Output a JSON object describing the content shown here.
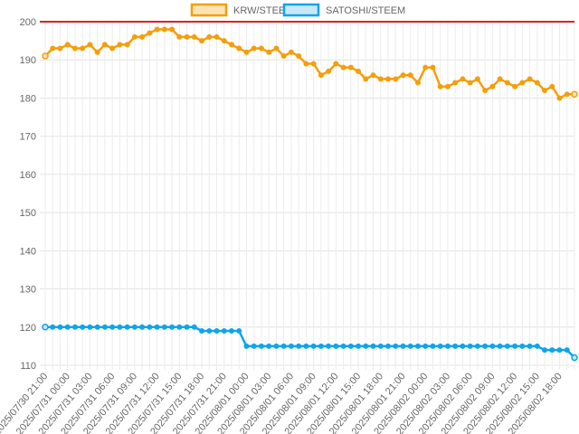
{
  "chart_data": {
    "type": "line",
    "ylim": [
      110,
      200
    ],
    "y_ticks": [
      110,
      120,
      130,
      140,
      150,
      160,
      170,
      180,
      190,
      200
    ],
    "grid": true,
    "legend_position": "top-center",
    "x_tick_labels": [
      "2025/07/30 21:00",
      "2025/07/31 00:00",
      "2025/07/31 03:00",
      "2025/07/31 06:00",
      "2025/07/31 09:00",
      "2025/07/31 12:00",
      "2025/07/31 15:00",
      "2025/07/31 18:00",
      "2025/07/31 21:00",
      "2025/08/01 00:00",
      "2025/08/01 03:00",
      "2025/08/01 06:00",
      "2025/08/01 09:00",
      "2025/08/01 12:00",
      "2025/08/01 15:00",
      "2025/08/01 18:00",
      "2025/08/01 21:00",
      "2025/08/02 00:00",
      "2025/08/02 03:00",
      "2025/08/02 06:00",
      "2025/08/02 09:00",
      "2025/08/02 12:00",
      "2025/08/02 15:00",
      "2025/08/02 18:00"
    ],
    "series": [
      {
        "name": "KRW/STEEM",
        "color": "#f59e0b",
        "fill": "#fde3b3",
        "values": [
          191,
          193,
          193,
          194,
          193,
          193,
          194,
          192,
          194,
          193,
          194,
          194,
          196,
          196,
          197,
          198,
          198,
          198,
          196,
          196,
          196,
          195,
          196,
          196,
          195,
          194,
          193,
          192,
          193,
          193,
          192,
          193,
          191,
          192,
          191,
          189,
          189,
          186,
          187,
          189,
          188,
          188,
          187,
          185,
          186,
          185,
          185,
          185,
          186,
          186,
          184,
          188,
          188,
          183,
          183,
          184,
          185,
          184,
          185,
          182,
          183,
          185,
          184,
          183,
          184,
          185,
          184,
          182,
          183,
          180,
          181,
          181
        ]
      },
      {
        "name": "SATOSHI/STEEM",
        "color": "#0ea5e9",
        "fill": "#c8e8f7",
        "values": [
          120,
          120,
          120,
          120,
          120,
          120,
          120,
          120,
          120,
          120,
          120,
          120,
          120,
          120,
          120,
          120,
          120,
          120,
          120,
          120,
          120,
          119,
          119,
          119,
          119,
          119,
          119,
          115,
          115,
          115,
          115,
          115,
          115,
          115,
          115,
          115,
          115,
          115,
          115,
          115,
          115,
          115,
          115,
          115,
          115,
          115,
          115,
          115,
          115,
          115,
          115,
          115,
          115,
          115,
          115,
          115,
          115,
          115,
          115,
          115,
          115,
          115,
          115,
          115,
          115,
          115,
          115,
          114,
          114,
          114,
          114,
          112
        ]
      }
    ],
    "reference_line": {
      "value": 200,
      "color": "#e02020"
    }
  }
}
